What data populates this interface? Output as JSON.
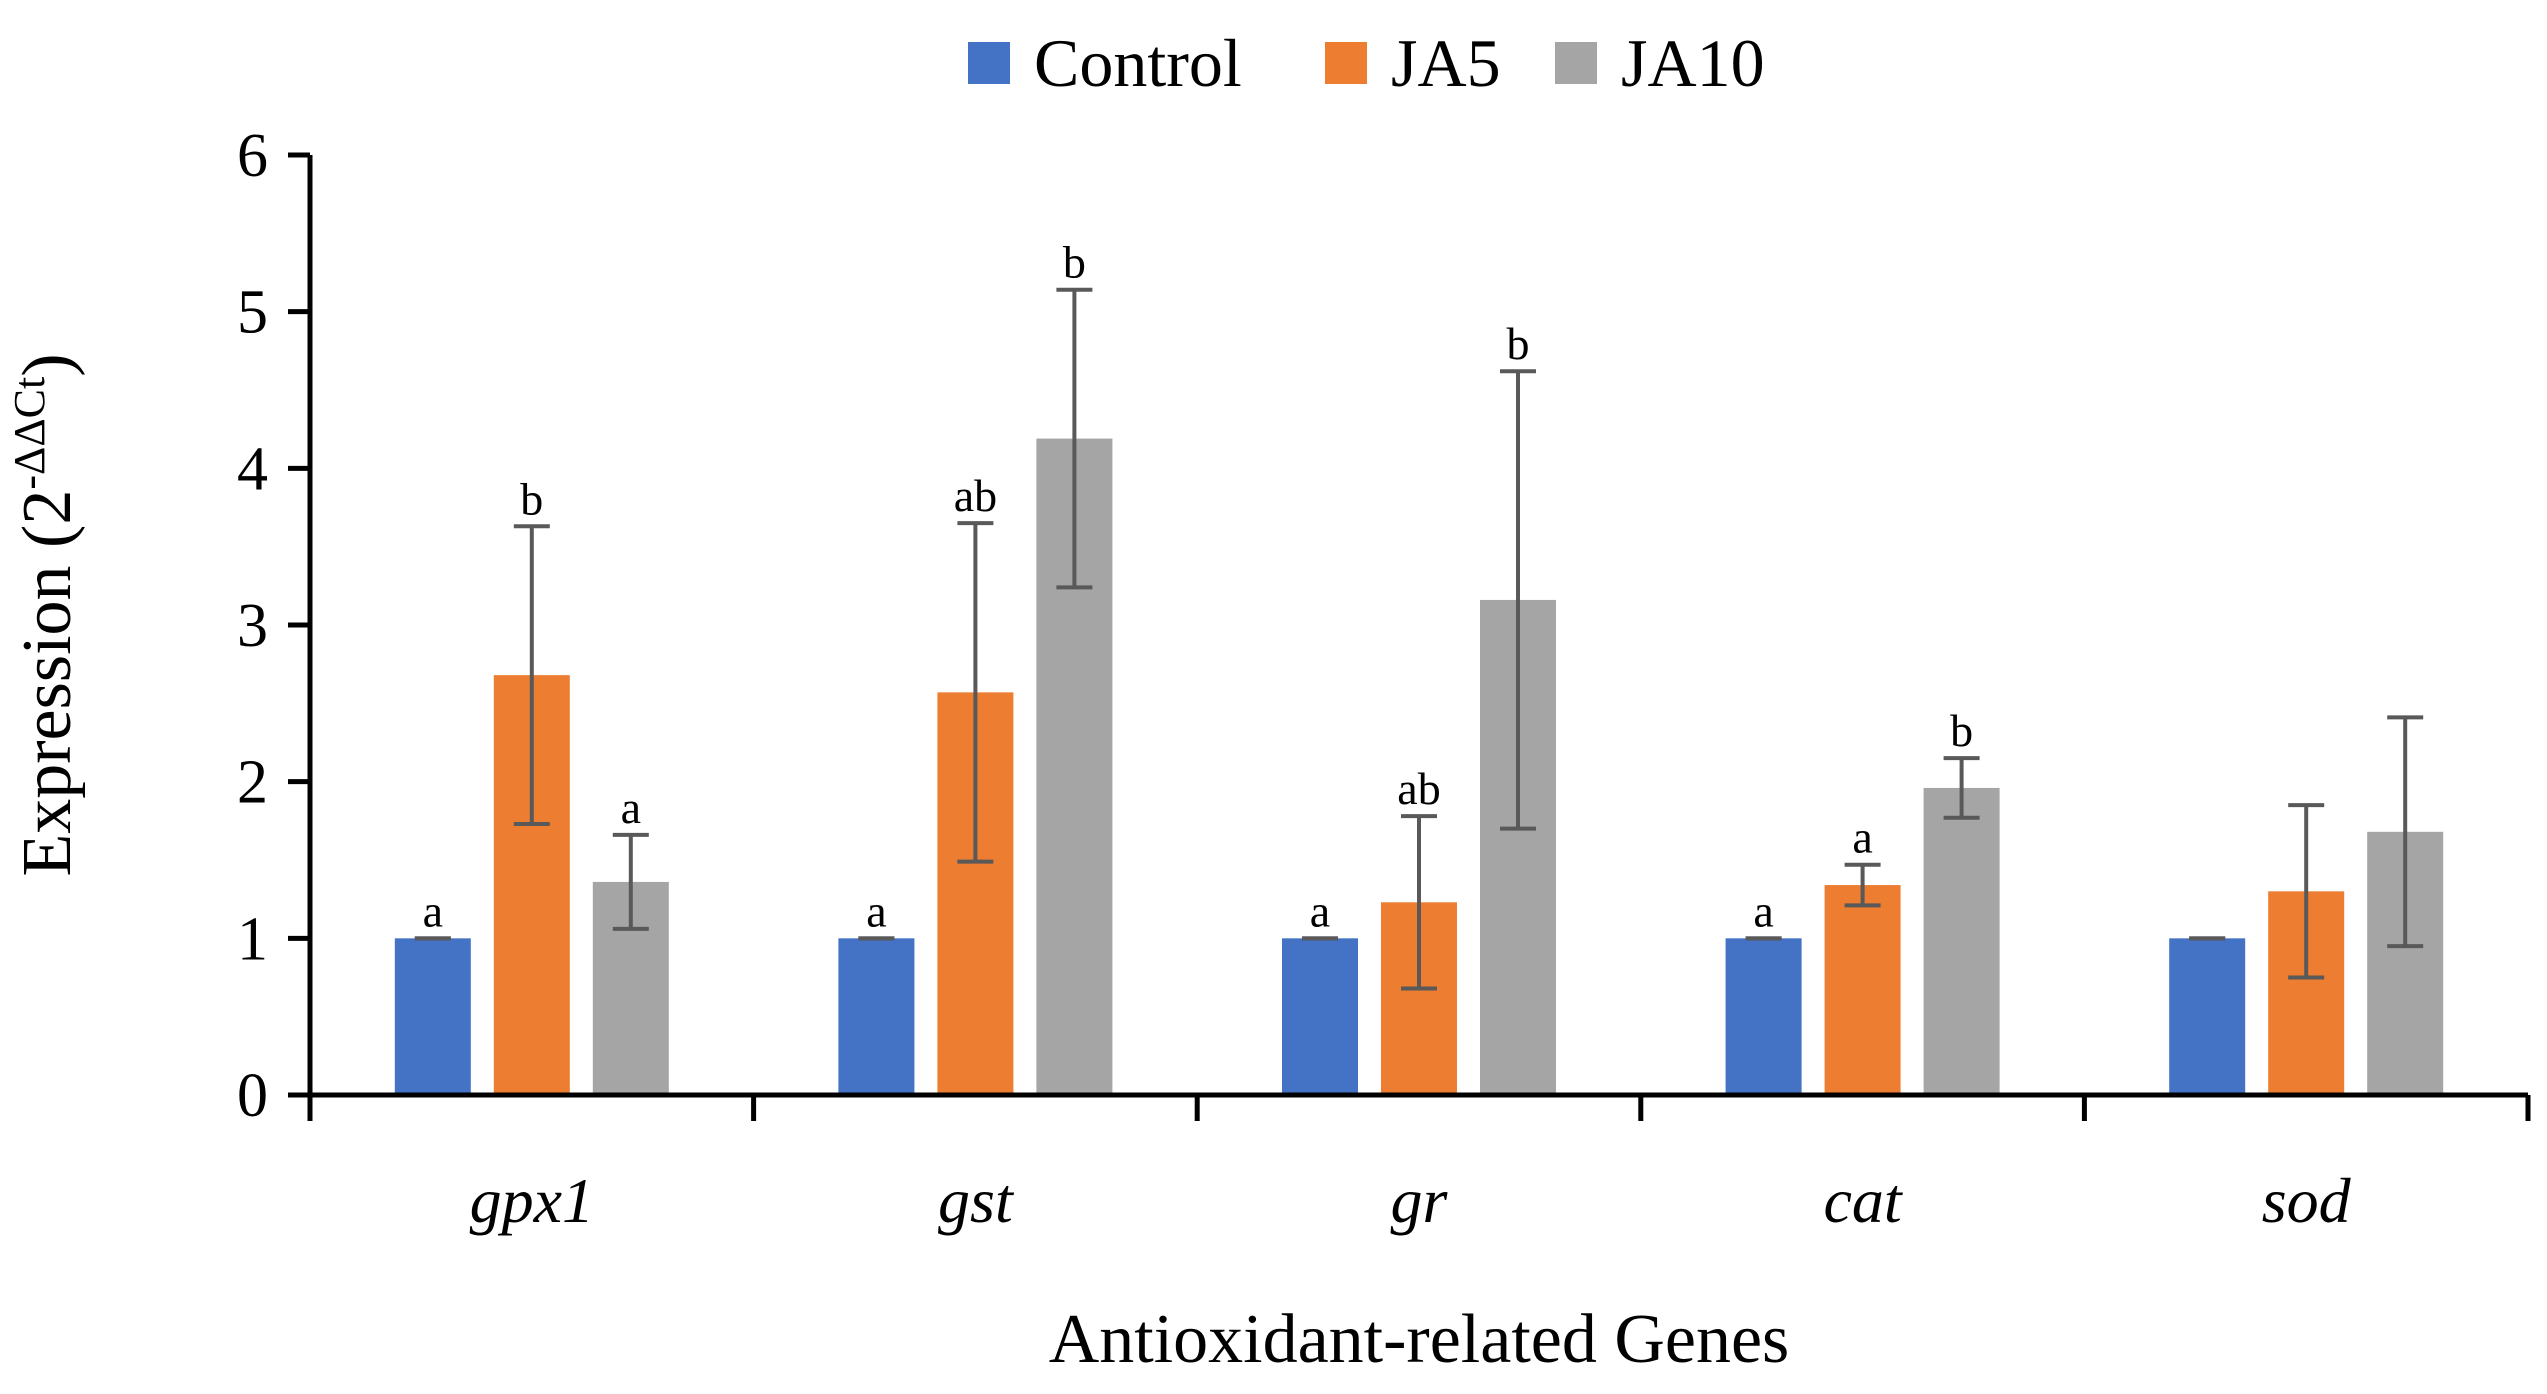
{
  "chart_data": {
    "type": "bar",
    "categories": [
      "gpx1",
      "gst",
      "gr",
      "cat",
      "sod"
    ],
    "series": [
      {
        "name": "Control",
        "color": "#4472C4",
        "values": [
          1.0,
          1.0,
          1.0,
          1.0,
          1.0
        ],
        "errors": [
          0.0,
          0.0,
          0.0,
          0.0,
          0.0
        ],
        "labels": [
          "a",
          "a",
          "a",
          "a",
          ""
        ]
      },
      {
        "name": "JA5",
        "color": "#ED7D31",
        "values": [
          2.68,
          2.57,
          1.23,
          1.34,
          1.3
        ],
        "errors": [
          0.95,
          1.08,
          0.55,
          0.13,
          0.55
        ],
        "labels": [
          "b",
          "ab",
          "ab",
          "a",
          ""
        ]
      },
      {
        "name": "JA10",
        "color": "#A5A5A5",
        "values": [
          1.36,
          4.19,
          3.16,
          1.96,
          1.68
        ],
        "errors": [
          0.3,
          0.95,
          1.46,
          0.19,
          0.73
        ],
        "labels": [
          "a",
          "b",
          "b",
          "b",
          ""
        ]
      }
    ],
    "ylim": [
      0,
      6
    ],
    "yticks": [
      0,
      1,
      2,
      3,
      4,
      5,
      6
    ],
    "xlabel": "Antioxidant-related Genes",
    "ylabel_main": "Expression (2",
    "ylabel_sup": "-ΔΔCt",
    "ylabel_close": ")",
    "legend_position": "top-center",
    "grid": false
  }
}
